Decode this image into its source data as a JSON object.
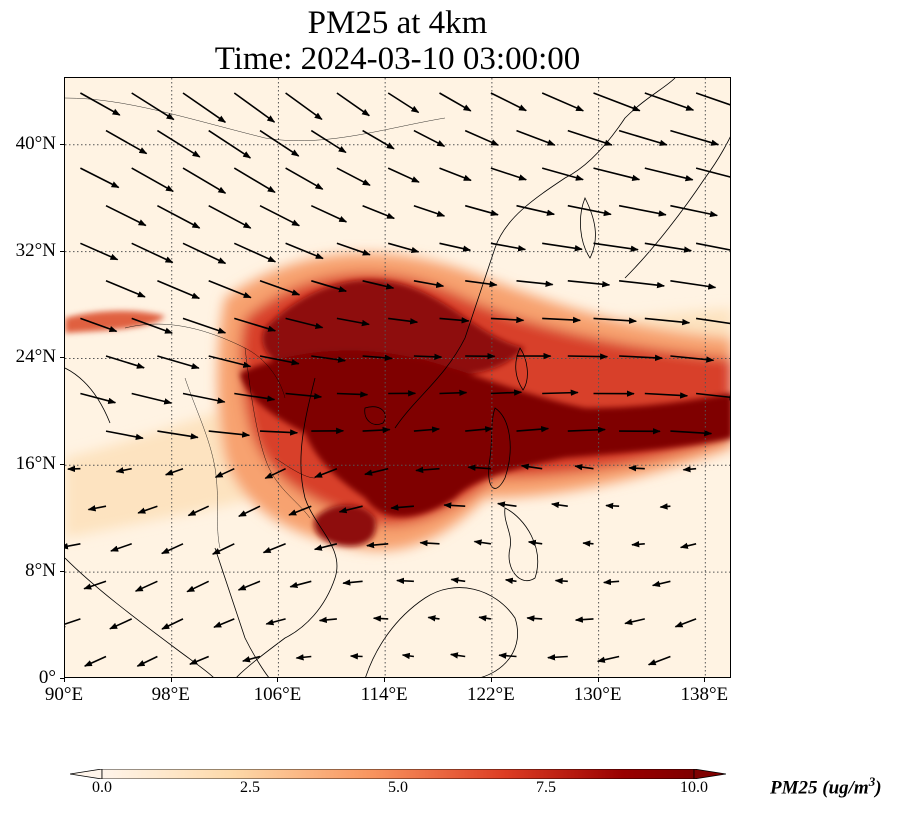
{
  "title": {
    "line1": "PM25 at 4km",
    "line2": "Time: 2024-03-10 03:00:00"
  },
  "map": {
    "extent": {
      "lon": [
        90,
        140
      ],
      "lat": [
        0,
        45
      ]
    },
    "gridlines": "dotted",
    "vectors": "wind arrows"
  },
  "axes": {
    "lat_ticks": [
      {
        "value": 0,
        "label": "0°"
      },
      {
        "value": 8,
        "label": "8°N"
      },
      {
        "value": 16,
        "label": "16°N"
      },
      {
        "value": 24,
        "label": "24°N"
      },
      {
        "value": 32,
        "label": "32°N"
      },
      {
        "value": 40,
        "label": "40°N"
      }
    ],
    "lon_ticks": [
      {
        "value": 90,
        "label": "90°E"
      },
      {
        "value": 98,
        "label": "98°E"
      },
      {
        "value": 106,
        "label": "106°E"
      },
      {
        "value": 114,
        "label": "114°E"
      },
      {
        "value": 122,
        "label": "122°E"
      },
      {
        "value": 130,
        "label": "130°E"
      },
      {
        "value": 138,
        "label": "138°E"
      }
    ]
  },
  "colorbar": {
    "label_main": "PM25 (ug/m",
    "label_sup": "3",
    "label_end": ")",
    "range": [
      0,
      10
    ],
    "extend": "both",
    "ticks": [
      {
        "value": 0,
        "label": "0.0"
      },
      {
        "value": 2.5,
        "label": "2.5"
      },
      {
        "value": 5,
        "label": "5.0"
      },
      {
        "value": 7.5,
        "label": "7.5"
      },
      {
        "value": 10,
        "label": "10.0"
      }
    ],
    "colors": [
      "#fff5eb",
      "#fdd9a9",
      "#f99660",
      "#dd3d23",
      "#990000",
      "#7f0000"
    ]
  }
}
